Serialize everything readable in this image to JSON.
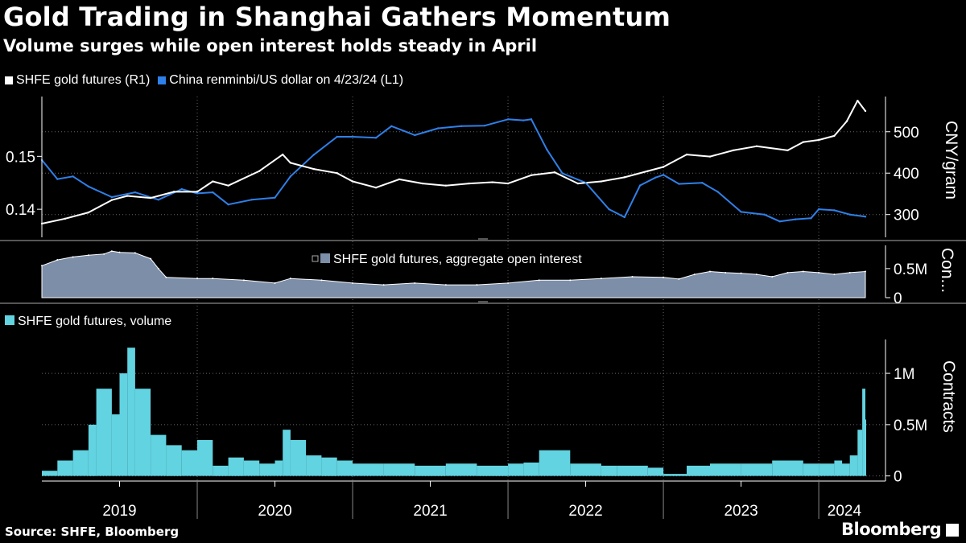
{
  "header": {
    "title": "Gold Trading in Shanghai Gathers Momentum",
    "subtitle": "Volume surges while open interest holds steady in April"
  },
  "footer": {
    "source": "Source: SHFE, Bloomberg",
    "brand": "Bloomberg"
  },
  "colors": {
    "background": "#000000",
    "gold_line": "#ffffff",
    "cny_line": "#2f80e8",
    "open_interest_fill": "#7d8ea8",
    "volume_fill": "#62d3e0",
    "grid": "#666666"
  },
  "chart_data": [
    {
      "type": "line",
      "panel": "top",
      "legend": [
        {
          "name": "SHFE gold futures (R1)",
          "color": "#ffffff"
        },
        {
          "name": "China renminbi/US dollar on 4/23/24 (L1)",
          "color": "#2f80e8"
        }
      ],
      "left_axis": {
        "ticks": [
          "0.14",
          "0.15"
        ],
        "tick_values": [
          0.14,
          0.15
        ],
        "range": [
          0.1347,
          0.1613
        ]
      },
      "right_axis": {
        "label": "CNY/gram",
        "ticks": [
          "300",
          "400",
          "500"
        ],
        "tick_values": [
          300,
          400,
          500
        ],
        "range": [
          245,
          585
        ]
      },
      "series": [
        {
          "name": "SHFE gold futures (R1)",
          "axis": "right",
          "x": [
            2019.0,
            2019.15,
            2019.3,
            2019.45,
            2019.55,
            2019.7,
            2019.85,
            2020.0,
            2020.1,
            2020.2,
            2020.4,
            2020.55,
            2020.6,
            2020.75,
            2020.9,
            2021.0,
            2021.15,
            2021.3,
            2021.45,
            2021.6,
            2021.75,
            2021.9,
            2022.0,
            2022.15,
            2022.3,
            2022.45,
            2022.6,
            2022.75,
            2022.9,
            2023.0,
            2023.15,
            2023.3,
            2023.45,
            2023.6,
            2023.8,
            2023.9,
            2024.0,
            2024.1,
            2024.18,
            2024.25,
            2024.3
          ],
          "values": [
            278,
            290,
            305,
            335,
            345,
            340,
            355,
            355,
            380,
            370,
            405,
            445,
            425,
            410,
            400,
            380,
            365,
            385,
            375,
            370,
            375,
            378,
            375,
            395,
            402,
            375,
            380,
            390,
            405,
            415,
            445,
            440,
            455,
            465,
            455,
            475,
            480,
            490,
            525,
            575,
            550
          ]
        },
        {
          "name": "China renminbi/US dollar on 4/23/24 (L1)",
          "axis": "left",
          "x": [
            2019.0,
            2019.1,
            2019.2,
            2019.3,
            2019.45,
            2019.6,
            2019.75,
            2019.9,
            2020.0,
            2020.1,
            2020.2,
            2020.35,
            2020.5,
            2020.6,
            2020.75,
            2020.9,
            2021.0,
            2021.15,
            2021.25,
            2021.4,
            2021.55,
            2021.7,
            2021.85,
            2022.0,
            2022.1,
            2022.15,
            2022.25,
            2022.35,
            2022.5,
            2022.65,
            2022.75,
            2022.85,
            2022.95,
            2023.0,
            2023.1,
            2023.25,
            2023.35,
            2023.5,
            2023.65,
            2023.75,
            2023.85,
            2023.95,
            2024.0,
            2024.1,
            2024.2,
            2024.3
          ],
          "values": [
            0.1493,
            0.1457,
            0.1462,
            0.1443,
            0.1423,
            0.1432,
            0.1418,
            0.1438,
            0.143,
            0.1432,
            0.1409,
            0.1418,
            0.1422,
            0.1462,
            0.1503,
            0.1537,
            0.1537,
            0.1535,
            0.1557,
            0.154,
            0.1553,
            0.1557,
            0.1558,
            0.157,
            0.1568,
            0.157,
            0.1513,
            0.1468,
            0.145,
            0.14,
            0.1385,
            0.1445,
            0.146,
            0.1465,
            0.1448,
            0.145,
            0.1433,
            0.1395,
            0.139,
            0.1377,
            0.1381,
            0.1383,
            0.14,
            0.1398,
            0.139,
            0.1386
          ]
        }
      ]
    },
    {
      "type": "area",
      "panel": "middle",
      "legend": [
        {
          "name": "SHFE gold futures, aggregate open interest",
          "color": "#7d8ea8"
        }
      ],
      "right_axis": {
        "label": "Con...",
        "ticks": [
          "0",
          "0.5M"
        ],
        "tick_values": [
          0,
          0.5
        ],
        "range": [
          0,
          0.9
        ]
      },
      "series": [
        {
          "name": "SHFE gold futures, aggregate open interest",
          "unit": "M contracts",
          "x": [
            2019.0,
            2019.1,
            2019.2,
            2019.3,
            2019.4,
            2019.45,
            2019.5,
            2019.6,
            2019.7,
            2019.75,
            2019.8,
            2020.0,
            2020.1,
            2020.3,
            2020.5,
            2020.6,
            2020.8,
            2021.0,
            2021.2,
            2021.4,
            2021.6,
            2021.8,
            2022.0,
            2022.2,
            2022.4,
            2022.6,
            2022.8,
            2023.0,
            2023.1,
            2023.2,
            2023.3,
            2023.4,
            2023.5,
            2023.6,
            2023.7,
            2023.8,
            2023.9,
            2024.0,
            2024.1,
            2024.2,
            2024.3
          ],
          "values": [
            0.55,
            0.65,
            0.7,
            0.73,
            0.75,
            0.8,
            0.78,
            0.77,
            0.67,
            0.5,
            0.35,
            0.33,
            0.33,
            0.3,
            0.25,
            0.33,
            0.3,
            0.25,
            0.22,
            0.25,
            0.22,
            0.22,
            0.25,
            0.3,
            0.3,
            0.33,
            0.36,
            0.35,
            0.32,
            0.4,
            0.45,
            0.43,
            0.42,
            0.4,
            0.36,
            0.43,
            0.45,
            0.43,
            0.4,
            0.43,
            0.45
          ]
        }
      ]
    },
    {
      "type": "bar",
      "panel": "bottom",
      "legend": [
        {
          "name": "SHFE gold futures, volume",
          "color": "#62d3e0"
        }
      ],
      "right_axis": {
        "label": "Contracts",
        "ticks": [
          "0",
          "0.5M",
          "1M"
        ],
        "tick_values": [
          0,
          0.5,
          1.0
        ],
        "range": [
          -0.05,
          1.33
        ]
      },
      "x_axis": {
        "ticks": [
          "2019",
          "2020",
          "2021",
          "2022",
          "2023",
          "2024"
        ],
        "year_starts": [
          2019.0,
          2020.0,
          2021.0,
          2022.0,
          2023.0,
          2024.0,
          2024.33
        ]
      },
      "series": [
        {
          "name": "SHFE gold futures, volume",
          "unit": "M contracts",
          "x": [
            2019.0,
            2019.1,
            2019.2,
            2019.3,
            2019.35,
            2019.45,
            2019.5,
            2019.55,
            2019.6,
            2019.7,
            2019.8,
            2019.9,
            2020.0,
            2020.1,
            2020.2,
            2020.3,
            2020.4,
            2020.5,
            2020.55,
            2020.6,
            2020.7,
            2020.8,
            2020.9,
            2021.0,
            2021.2,
            2021.4,
            2021.6,
            2021.8,
            2022.0,
            2022.1,
            2022.2,
            2022.4,
            2022.6,
            2022.7,
            2022.8,
            2022.9,
            2023.0,
            2023.05,
            2023.15,
            2023.3,
            2023.5,
            2023.7,
            2023.9,
            2024.0,
            2024.1,
            2024.15,
            2024.2,
            2024.25,
            2024.28,
            2024.3
          ],
          "values": [
            0.05,
            0.15,
            0.25,
            0.5,
            0.85,
            0.6,
            1.0,
            1.25,
            0.85,
            0.4,
            0.3,
            0.25,
            0.35,
            0.1,
            0.18,
            0.15,
            0.12,
            0.15,
            0.45,
            0.35,
            0.2,
            0.18,
            0.15,
            0.12,
            0.12,
            0.1,
            0.12,
            0.1,
            0.12,
            0.13,
            0.25,
            0.12,
            0.1,
            0.1,
            0.1,
            0.08,
            0.02,
            0.02,
            0.1,
            0.12,
            0.12,
            0.15,
            0.12,
            0.12,
            0.15,
            0.12,
            0.2,
            0.45,
            0.85,
            0.55
          ]
        }
      ]
    }
  ]
}
